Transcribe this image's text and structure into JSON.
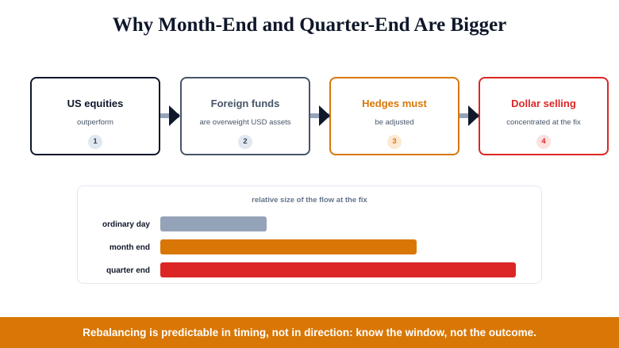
{
  "title": "Why Month-End and Quarter-End Are Bigger",
  "steps": [
    {
      "head": "US equities",
      "sub": "outperform",
      "num": "1",
      "color": "#0f172a",
      "num_bg": "#e2e8f0",
      "num_fg": "#334155"
    },
    {
      "head": "Foreign funds",
      "sub": "are overweight USD assets",
      "num": "2",
      "color": "#475569",
      "num_bg": "#e2e8f0",
      "num_fg": "#334155"
    },
    {
      "head": "Hedges must",
      "sub": "be adjusted",
      "num": "3",
      "color": "#d97706",
      "num_bg": "#fde9d3",
      "num_fg": "#d97706"
    },
    {
      "head": "Dollar selling",
      "sub": "concentrated at the fix",
      "num": "4",
      "color": "#dc2626",
      "num_bg": "#fde0e0",
      "num_fg": "#dc2626"
    }
  ],
  "connector_color": "#94a3b8",
  "arrowhead_color": "#0f172a",
  "panel": {
    "title": "relative size of the flow at the fix"
  },
  "chart_data": {
    "type": "bar",
    "orientation": "horizontal",
    "title": "relative size of the flow at the fix",
    "categories": [
      "ordinary day",
      "month end",
      "quarter end"
    ],
    "values": [
      0.3,
      0.72,
      1.0
    ],
    "colors": [
      "#94a3b8",
      "#d97706",
      "#dc2626"
    ],
    "grid": false
  },
  "footer": "Rebalancing is predictable in timing, not in direction: know the window, not the outcome.",
  "footer_color": "#d97706"
}
